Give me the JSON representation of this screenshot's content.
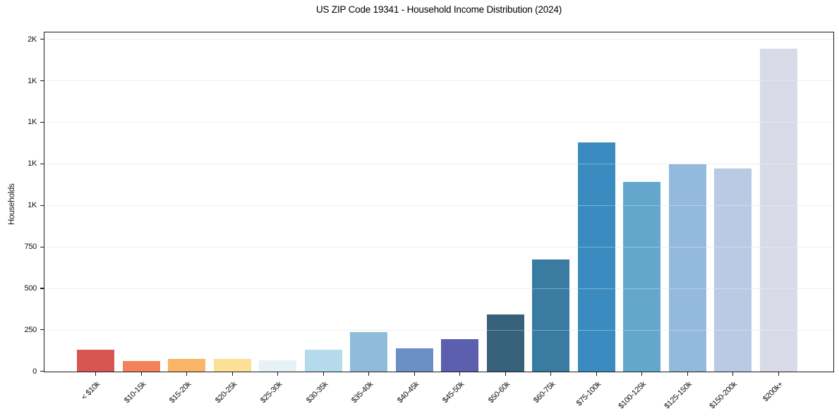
{
  "chart_data": {
    "type": "bar",
    "title": "US ZIP Code 19341 - Household Income Distribution (2024)",
    "xlabel": "",
    "ylabel": "Households",
    "categories": [
      "< $10k",
      "$10-15k",
      "$15-20k",
      "$20-25k",
      "$25-30k",
      "$30-35k",
      "$35-40k",
      "$40-45k",
      "$45-50k",
      "$50-60k",
      "$60-75k",
      "$75-100k",
      "$100-125k",
      "$125-150k",
      "$150-200k",
      "$200k+"
    ],
    "values": [
      130,
      64,
      78,
      76,
      70,
      132,
      237,
      140,
      194,
      346,
      676,
      1378,
      1143,
      1250,
      1221,
      1946
    ],
    "bar_colors": [
      "#d7564f",
      "#f5815b",
      "#f9b468",
      "#fbe095",
      "#e7f2f6",
      "#b5daeb",
      "#8fbcdb",
      "#6c90c4",
      "#5c5fae",
      "#36617b",
      "#3a7ba1",
      "#3a8cc0",
      "#63a8cc",
      "#93b9dc",
      "#bacae4",
      "#d9dae8"
    ],
    "y_ticks": [
      0,
      250,
      500,
      750,
      1000,
      1250,
      1500,
      1750,
      2000
    ],
    "y_tick_labels": [
      "0",
      "250",
      "500",
      "750",
      "1K",
      "1K",
      "1K",
      "1K",
      "2K"
    ],
    "ylim": [
      0,
      2040
    ],
    "x_tick_rotation": 45,
    "grid": "horizontal",
    "legend": "none",
    "background_color": "#ffffff",
    "grid_color": "#e8e8e8",
    "spine_color": "#1a1a1a",
    "text_color": "#111111"
  }
}
